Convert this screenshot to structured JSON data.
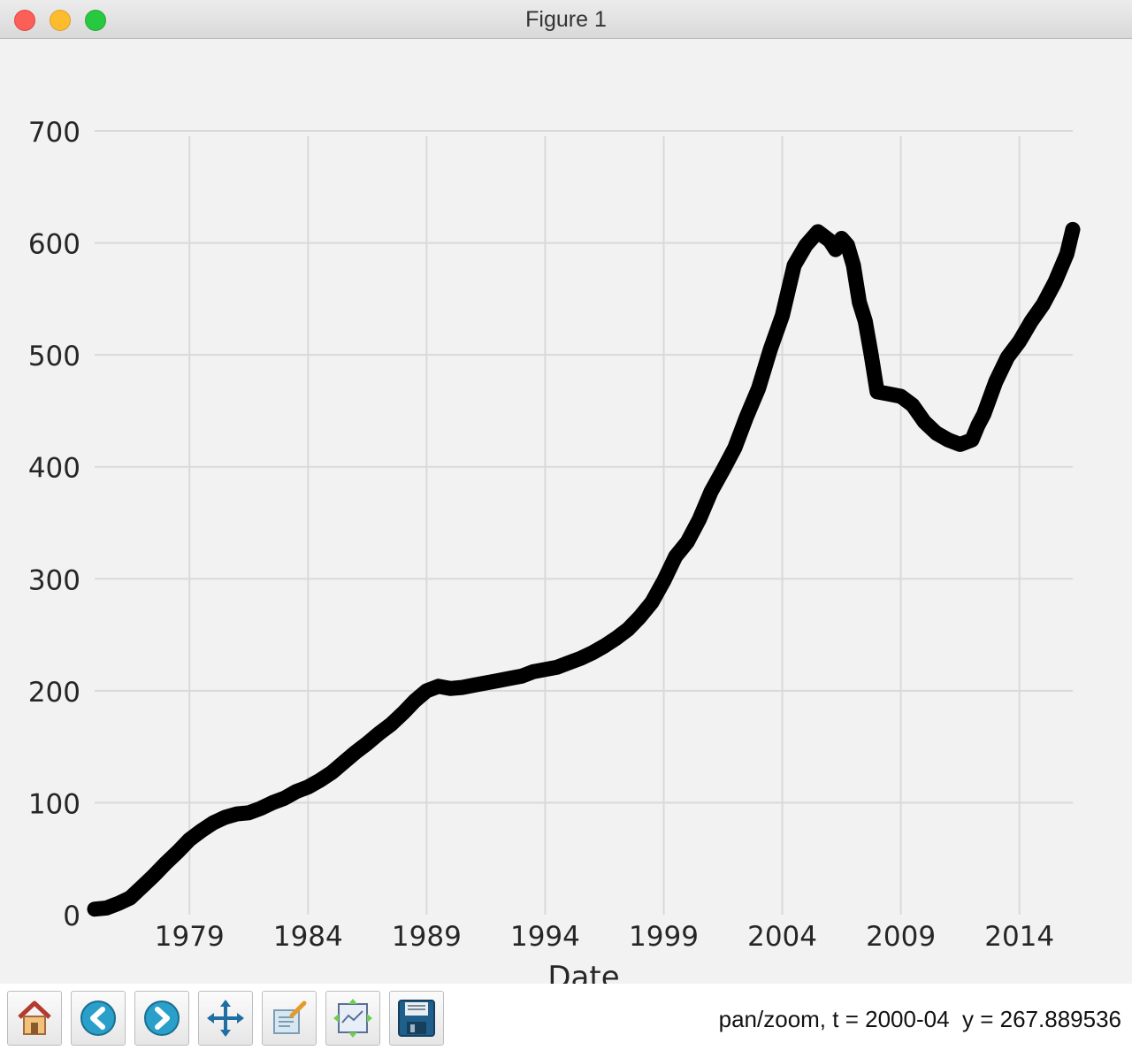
{
  "window": {
    "title": "Figure 1"
  },
  "toolbar": {
    "buttons": [
      {
        "icon": "home-icon"
      },
      {
        "icon": "back-arrow-icon"
      },
      {
        "icon": "forward-arrow-icon"
      },
      {
        "icon": "pan-move-icon"
      },
      {
        "icon": "zoom-rect-icon"
      },
      {
        "icon": "subplots-icon"
      },
      {
        "icon": "save-icon"
      }
    ],
    "status": {
      "mode": "pan/zoom,",
      "t": "t = 2000-04",
      "y": "y = 267.889536"
    }
  },
  "chart_data": {
    "type": "line",
    "title": "",
    "xlabel": "Date",
    "ylabel": "",
    "x_tick_labels": [
      "1979",
      "1984",
      "1989",
      "1994",
      "1999",
      "2004",
      "2009",
      "2014"
    ],
    "y_tick_labels": [
      "0",
      "100",
      "200",
      "300",
      "400",
      "500",
      "600",
      "700"
    ],
    "xlim": [
      1975.0,
      2016.25
    ],
    "ylim": [
      0,
      700
    ],
    "grid": true,
    "line_color": "#000000",
    "series": [
      {
        "x": [
          1975.0,
          1975.5,
          1976.0,
          1976.5,
          1977.0,
          1977.5,
          1978.0,
          1978.5,
          1979.0,
          1979.5,
          1980.0,
          1980.5,
          1981.0,
          1981.5,
          1982.0,
          1982.5,
          1983.0,
          1983.5,
          1984.0,
          1984.5,
          1985.0,
          1985.5,
          1986.0,
          1986.5,
          1987.0,
          1987.5,
          1988.0,
          1988.5,
          1989.0,
          1989.5,
          1990.0,
          1990.5,
          1991.0,
          1991.5,
          1992.0,
          1992.5,
          1993.0,
          1993.5,
          1994.0,
          1994.5,
          1995.0,
          1995.5,
          1996.0,
          1996.5,
          1997.0,
          1997.5,
          1998.0,
          1998.5,
          1999.0,
          1999.5,
          2000.0,
          2000.5,
          2001.0,
          2001.5,
          2002.0,
          2002.5,
          2003.0,
          2003.5,
          2004.0,
          2004.5,
          2005.0,
          2005.5,
          2006.0,
          2006.25,
          2006.5,
          2006.75,
          2007.0,
          2007.25,
          2007.5,
          2007.75,
          2008.0,
          2008.5,
          2009.0,
          2009.5,
          2010.0,
          2010.5,
          2011.0,
          2011.5,
          2012.0,
          2012.25,
          2012.5,
          2013.0,
          2013.5,
          2014.0,
          2014.5,
          2015.0,
          2015.5,
          2016.0,
          2016.25
        ],
        "y": [
          5,
          6,
          10,
          15,
          25,
          35,
          46,
          56,
          67,
          75,
          82,
          87,
          90,
          91,
          95,
          100,
          104,
          110,
          114,
          120,
          127,
          136,
          145,
          153,
          162,
          170,
          180,
          191,
          200,
          204,
          202,
          203,
          205,
          207,
          209,
          211,
          213,
          217,
          219,
          221,
          225,
          229,
          234,
          240,
          247,
          255,
          266,
          279,
          298,
          320,
          333,
          353,
          378,
          397,
          417,
          445,
          470,
          505,
          535,
          580,
          598,
          610,
          602,
          594,
          604,
          598,
          580,
          547,
          530,
          500,
          467,
          465,
          463,
          455,
          440,
          430,
          424,
          420,
          424,
          437,
          447,
          476,
          498,
          512,
          530,
          545,
          565,
          590,
          612
        ]
      }
    ]
  }
}
